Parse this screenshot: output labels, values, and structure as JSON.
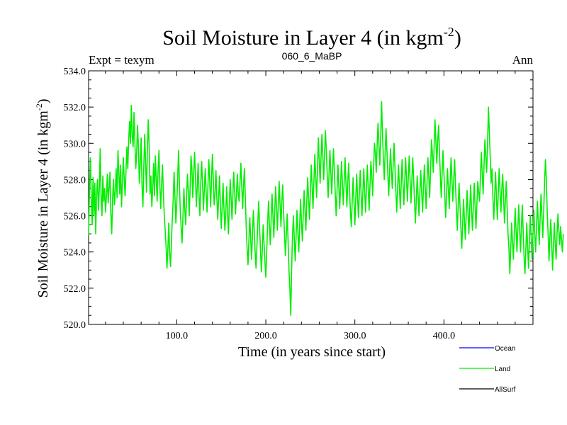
{
  "chart_data": {
    "type": "line",
    "title": "Soil Moisture in Layer 4 (in kgm",
    "title_superscript": "-2",
    "title_close": ")",
    "subtitle_left": "Expt = texym",
    "subtitle_center": "060_6_MaBP",
    "subtitle_right": "Ann",
    "xlabel": "Time (in years since start)",
    "ylabel": "Soil Moisture in Layer 4 (in kgm",
    "ylabel_superscript": "-2",
    "ylabel_close": ")",
    "xlim": [
      1,
      500
    ],
    "ylim": [
      520,
      534
    ],
    "x_ticks": [
      100,
      200,
      300,
      400
    ],
    "x_tick_labels": [
      "100.0",
      "200.0",
      "300.0",
      "400.0"
    ],
    "y_ticks": [
      520,
      522,
      524,
      526,
      528,
      530,
      532,
      534
    ],
    "y_tick_labels": [
      "520.0",
      "522.0",
      "524.0",
      "526.0",
      "528.0",
      "530.0",
      "532.0",
      "534.0"
    ],
    "grid": false,
    "legend_position": "bottom-right",
    "legend": [
      {
        "name": "Ocean",
        "color": "#0000ff"
      },
      {
        "name": "Land",
        "color": "#00ee00"
      },
      {
        "name": "AllSurf",
        "color": "#000000"
      }
    ],
    "series": [
      {
        "name": "Land",
        "color": "#00ee00",
        "x_start": 1,
        "x_step": 1,
        "values": [
          524.9,
          527.5,
          529.2,
          527.0,
          525.5,
          528.1,
          526.0,
          527.8,
          525.0,
          527.2,
          528.0,
          526.3,
          527.4,
          529.7,
          527.1,
          526.0,
          528.2,
          526.8,
          527.5,
          526.2,
          527.0,
          528.3,
          526.7,
          527.5,
          528.4,
          526.1,
          525.0,
          527.0,
          528.0,
          526.6,
          527.4,
          528.6,
          527.0,
          529.6,
          528.4,
          527.2,
          528.8,
          526.5,
          527.9,
          529.2,
          528.0,
          527.1,
          528.5,
          529.8,
          528.6,
          530.1,
          531.2,
          530.0,
          532.1,
          530.4,
          529.8,
          531.7,
          530.0,
          528.6,
          529.5,
          531.0,
          529.7,
          527.8,
          528.9,
          530.3,
          527.6,
          526.5,
          528.7,
          530.5,
          529.0,
          527.3,
          529.6,
          531.3,
          529.8,
          527.2,
          528.2,
          526.5,
          527.5,
          528.9,
          527.1,
          529.3,
          528.0,
          526.8,
          528.5,
          529.6,
          527.7,
          526.4,
          527.8,
          528.8,
          527.2,
          526.0,
          525.2,
          524.3,
          523.1,
          524.1,
          525.6,
          524.0,
          523.2,
          524.5,
          525.8,
          526.9,
          528.4,
          527.0,
          525.6,
          526.7,
          528.0,
          529.6,
          527.8,
          526.2,
          525.3,
          524.5,
          526.0,
          527.5,
          526.4,
          525.5,
          527.0,
          528.3,
          527.4,
          526.0,
          527.5,
          529.3,
          528.6,
          527.0,
          528.3,
          529.5,
          528.2,
          526.5,
          527.6,
          528.9,
          527.2,
          526.0,
          527.8,
          529.0,
          527.7,
          526.3,
          527.5,
          528.6,
          527.3,
          526.2,
          527.6,
          529.1,
          528.0,
          526.5,
          527.9,
          529.4,
          528.1,
          526.6,
          527.2,
          528.5,
          527.0,
          525.8,
          526.9,
          528.2,
          526.6,
          525.3,
          526.5,
          527.8,
          526.4,
          525.2,
          526.1,
          527.6,
          526.2,
          525.0,
          526.6,
          528.0,
          527.0,
          525.8,
          527.1,
          528.4,
          527.3,
          526.1,
          527.2,
          528.3,
          527.2,
          526.8,
          527.8,
          528.9,
          527.6,
          526.4,
          527.7,
          528.6,
          527.0,
          525.4,
          524.2,
          523.3,
          524.6,
          525.9,
          524.8,
          523.6,
          524.9,
          526.3,
          525.2,
          524.0,
          523.1,
          524.3,
          525.6,
          526.8,
          525.4,
          524.1,
          522.9,
          524.0,
          525.5,
          524.5,
          523.5,
          522.6,
          524.0,
          525.5,
          526.8,
          525.6,
          524.4,
          525.8,
          527.2,
          526.0,
          524.8,
          526.2,
          527.6,
          526.5,
          525.2,
          526.6,
          527.9,
          526.6,
          525.4,
          526.8,
          527.7,
          526.2,
          525.0,
          523.8,
          524.9,
          526.1,
          524.6,
          523.0,
          522.0,
          520.5,
          523.0,
          525.0,
          526.0,
          524.7,
          523.5,
          524.9,
          526.3,
          525.1,
          524.0,
          525.4,
          526.9,
          525.7,
          524.6,
          526.0,
          527.4,
          526.3,
          525.2,
          526.8,
          528.1,
          527.0,
          525.8,
          527.3,
          528.8,
          527.6,
          526.4,
          527.9,
          529.4,
          528.2,
          527.0,
          528.5,
          530.3,
          529.0,
          527.8,
          529.2,
          530.5,
          529.3,
          528.0,
          529.4,
          530.7,
          529.5,
          528.2,
          527.0,
          528.3,
          529.6,
          528.4,
          527.2,
          528.5,
          529.7,
          528.4,
          527.2,
          526.0,
          527.4,
          528.8,
          527.6,
          526.4,
          527.7,
          529.0,
          527.8,
          526.6,
          527.9,
          529.2,
          527.8,
          526.5,
          527.8,
          528.9,
          527.5,
          526.2,
          525.4,
          526.8,
          528.1,
          526.8,
          525.5,
          526.9,
          528.3,
          527.1,
          525.9,
          527.2,
          528.5,
          527.2,
          526.0,
          527.3,
          528.6,
          527.4,
          526.2,
          527.6,
          528.8,
          527.5,
          526.3,
          527.7,
          529.0,
          528.2,
          527.1,
          528.6,
          530.0,
          529.5,
          528.4,
          529.9,
          531.1,
          530.0,
          528.8,
          530.3,
          532.3,
          530.5,
          529.2,
          528.0,
          529.5,
          530.8,
          529.6,
          528.3,
          527.1,
          528.4,
          529.7,
          528.6,
          527.5,
          528.8,
          530.0,
          528.7,
          527.4,
          526.2,
          527.5,
          528.8,
          527.6,
          526.4,
          527.7,
          529.1,
          527.9,
          526.6,
          527.9,
          529.2,
          528.0,
          526.8,
          528.1,
          529.3,
          528.0,
          526.7,
          528.0,
          529.2,
          528.0,
          526.8,
          525.6,
          526.9,
          528.2,
          527.1,
          526.0,
          527.3,
          528.5,
          527.3,
          526.2,
          527.5,
          528.8,
          527.6,
          526.4,
          527.8,
          529.2,
          528.2,
          527.0,
          528.5,
          530.2,
          529.5,
          528.4,
          529.8,
          531.3,
          530.1,
          528.9,
          530.1,
          531.0,
          529.5,
          528.2,
          527.0,
          528.4,
          529.6,
          528.3,
          527.1,
          525.9,
          527.2,
          528.6,
          527.5,
          526.4,
          527.8,
          529.2,
          528.0,
          526.8,
          528.0,
          529.1,
          527.7,
          526.4,
          525.2,
          526.5,
          527.8,
          526.6,
          525.4,
          524.2,
          525.5,
          526.9,
          525.8,
          524.7,
          526.0,
          527.4,
          526.2,
          525.0,
          526.4,
          527.7,
          526.4,
          525.2,
          526.5,
          527.8,
          526.5,
          525.3,
          526.6,
          527.9,
          527.3,
          526.8,
          528.2,
          529.5,
          528.3,
          527.2,
          528.7,
          530.2,
          529.3,
          528.4,
          530.0,
          532.0,
          530.6,
          529.2,
          527.8,
          528.6,
          527.0,
          525.8,
          527.1,
          528.4,
          527.0,
          525.8,
          527.2,
          528.6,
          527.4,
          526.2,
          527.5,
          528.3,
          527.0,
          525.6,
          526.8,
          527.9,
          526.4,
          525.0,
          524.2,
          522.8,
          524.2,
          525.6,
          524.6,
          523.6,
          525.0,
          526.4,
          525.2,
          524.0,
          525.3,
          526.6,
          525.3,
          524.0,
          525.4,
          526.6,
          525.1,
          523.7,
          522.8,
          524.2,
          525.6,
          524.3,
          523.1,
          524.6,
          526.0,
          524.8,
          523.6,
          525.0,
          526.3,
          525.0,
          524.0,
          525.4,
          526.8,
          525.6,
          524.4,
          525.8,
          527.2,
          526.0,
          524.8,
          526.2,
          527.8,
          529.1,
          528.0,
          526.2,
          525.0,
          523.5,
          524.8,
          525.8,
          524.5,
          523.0,
          524.4,
          525.6,
          524.4,
          523.6,
          525.0,
          526.1,
          525.2,
          524.4,
          525.4,
          524.7,
          524.0,
          525.0
        ]
      },
      {
        "name": "Ocean",
        "color": "#0000ff",
        "values": []
      },
      {
        "name": "AllSurf",
        "color": "#000000",
        "values": []
      }
    ]
  }
}
